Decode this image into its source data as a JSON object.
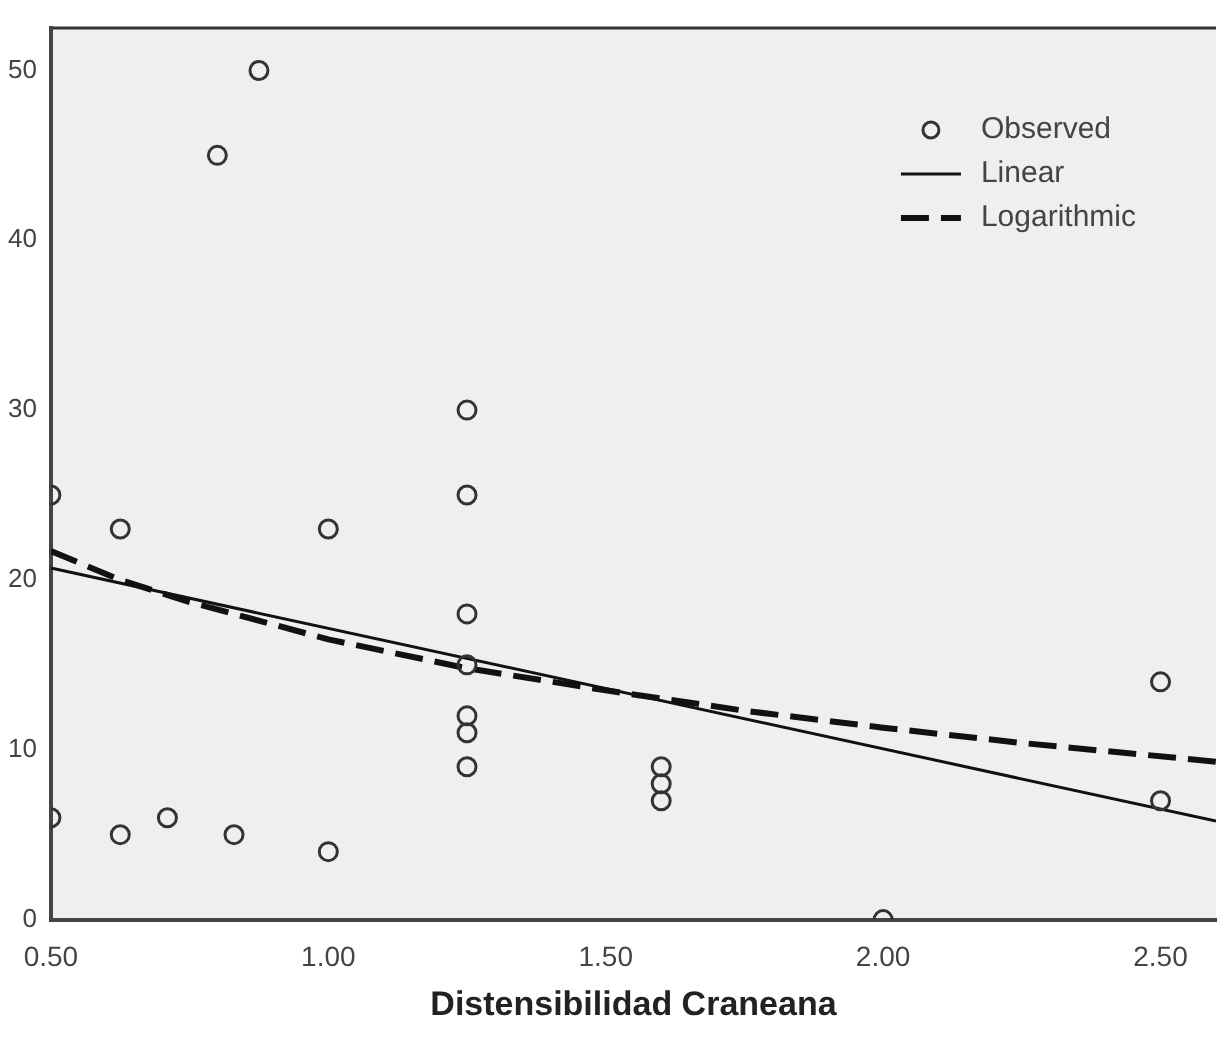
{
  "chart_data": {
    "type": "scatter",
    "xlabel": "Distensibilidad Craneana",
    "xlim": [
      0.5,
      2.6
    ],
    "ylim": [
      0,
      52.5
    ],
    "xticks": [
      {
        "value": 0.5,
        "label": "0.50"
      },
      {
        "value": 1,
        "label": "1.00"
      },
      {
        "value": 1.5,
        "label": "1.50"
      },
      {
        "value": 2,
        "label": "2.00"
      },
      {
        "value": 2.5,
        "label": "2.50"
      }
    ],
    "yticks": [
      0,
      10,
      20,
      30,
      40,
      50
    ],
    "grid": false,
    "legend": "top right",
    "series": [
      {
        "name": "Observed",
        "type": "scatter",
        "marker": "circle",
        "color": "#333333",
        "x": [
          0.5,
          0.5,
          0.625,
          0.625,
          0.71,
          0.8,
          0.83,
          0.875,
          1.0,
          1.0,
          1.25,
          1.25,
          1.25,
          1.25,
          1.25,
          1.25,
          1.25,
          1.6,
          1.6,
          1.6,
          2.0,
          2.5,
          2.5
        ],
        "values": [
          25,
          6,
          23,
          5,
          6,
          45,
          5,
          50,
          23,
          4,
          30,
          25,
          18,
          15,
          12,
          11,
          9,
          9,
          8,
          7,
          0,
          14,
          7
        ]
      },
      {
        "name": "Linear",
        "type": "line",
        "line_style": "solid",
        "color": "#111111",
        "x": [
          0.5,
          2.6
        ],
        "values": [
          20.7,
          5.8
        ]
      },
      {
        "name": "Logarithmic",
        "type": "line",
        "line_style": "dashed",
        "color": "#111111",
        "x": [
          0.5,
          0.625,
          0.75,
          1,
          1.25,
          1.5,
          1.75,
          2,
          2.25,
          2.6
        ],
        "values": [
          21.7,
          20.0,
          18.7,
          16.5,
          14.8,
          13.5,
          12.3,
          11.3,
          10.4,
          9.3
        ]
      }
    ]
  }
}
